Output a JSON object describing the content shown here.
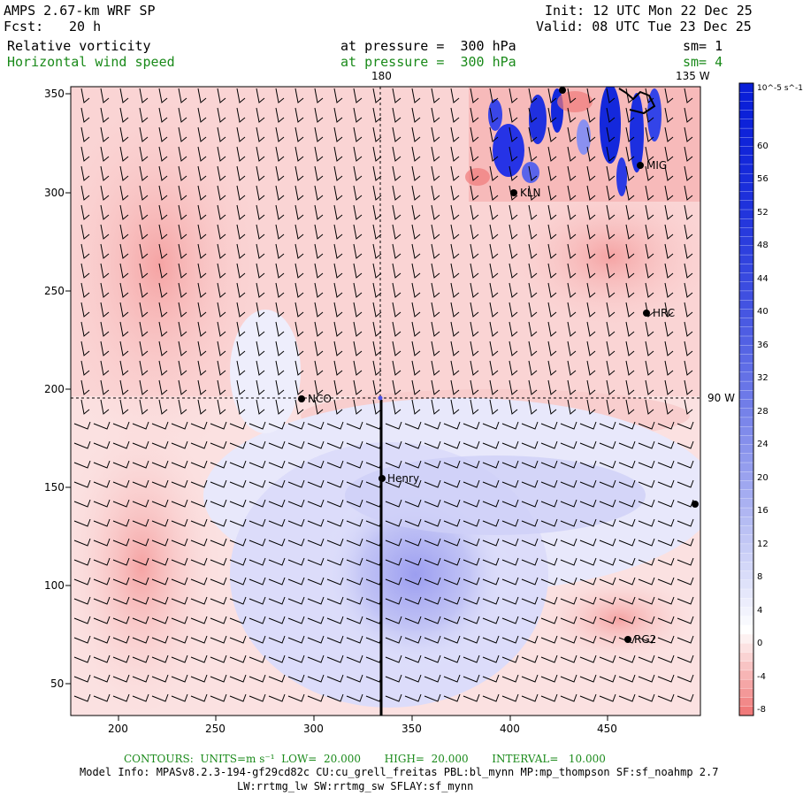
{
  "header": {
    "model": "AMPS 2.67-km WRF SP",
    "fcst_label": "Fcst:",
    "fcst_value": "20 h",
    "init": "Init: 12 UTC Mon 22 Dec 25",
    "valid": "Valid: 08 UTC Tue 23 Dec 25",
    "field1_name": "Relative vorticity",
    "field1_level": "at pressure =  300 hPa",
    "field1_sm": "sm= 1",
    "field2_name": "Horizontal wind speed",
    "field2_level": "at pressure =  300 hPa",
    "field2_sm": "sm= 4"
  },
  "map": {
    "top_labels": {
      "meridian_180": "180",
      "meridian_135w": "135 W"
    },
    "right_label_90w": "90 W",
    "x_ticks": [
      "200",
      "250",
      "300",
      "350",
      "400",
      "450"
    ],
    "y_ticks": [
      "350",
      "300",
      "250",
      "200",
      "150",
      "100",
      "50"
    ],
    "stations": [
      {
        "name": "NCO"
      },
      {
        "name": "KLN"
      },
      {
        "name": "MIG"
      },
      {
        "name": "HRC"
      },
      {
        "name": "Henry"
      },
      {
        "name": "RG2"
      }
    ]
  },
  "colorbar": {
    "units": "10^-5 s^-1",
    "labels": [
      "60",
      "56",
      "52",
      "48",
      "44",
      "40",
      "36",
      "32",
      "28",
      "24",
      "20",
      "16",
      "12",
      "8",
      "4",
      "0",
      "-4",
      "-8"
    ],
    "colors": {
      "positive_max": "#0a1fd8",
      "zero": "#ffffff",
      "negative_max": "#f07a7a"
    }
  },
  "footer": {
    "contours": "CONTOURS:  UNITS=m s⁻¹  LOW=  20.000       HIGH=  20.000       INTERVAL=   10.000",
    "model_info": "Model Info: MPASv8.2.3-194-gf29cd82c CU:cu_grell_freitas PBL:bl_mynn MP:mp_thompson SF:sf_noahmp 2.7",
    "physics": "LW:rrtmg_lw SW:rrtmg_sw SFLAY:sf_mynn"
  }
}
